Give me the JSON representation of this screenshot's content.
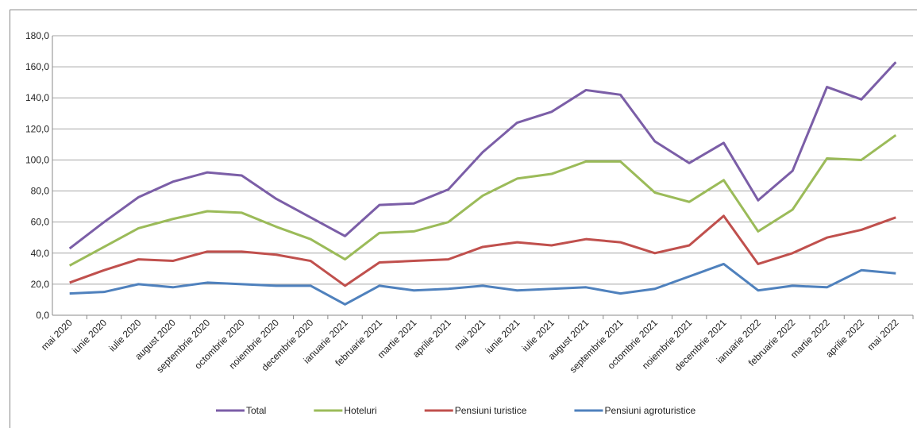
{
  "chart_data": {
    "type": "line",
    "categories": [
      "mai 2020",
      "iunie 2020",
      "iulie 2020",
      "august 2020",
      "septembrie 2020",
      "octombrie 2020",
      "noiembrie 2020",
      "decembrie 2020",
      "ianuarie 2021",
      "februarie 2021",
      "martie 2021",
      "aprilie 2021",
      "mai 2021",
      "iunie 2021",
      "iulie 2021",
      "august 2021",
      "septembrie 2021",
      "octombrie 2021",
      "noiembrie 2021",
      "decembrie 2021",
      "ianuarie 2022",
      "februarie 2022",
      "martie 2022",
      "aprilie 2022",
      "mai 2022"
    ],
    "series": [
      {
        "name": "Total",
        "color": "#7b5ea7",
        "values": [
          43,
          60,
          76,
          86,
          92,
          90,
          75,
          63,
          51,
          71,
          72,
          81,
          105,
          124,
          131,
          145,
          142,
          112,
          98,
          111,
          74,
          93,
          147,
          139,
          163
        ]
      },
      {
        "name": "Hoteluri",
        "color": "#9bbb59",
        "values": [
          32,
          44,
          56,
          62,
          67,
          66,
          57,
          49,
          36,
          53,
          54,
          60,
          77,
          88,
          91,
          99,
          99,
          79,
          73,
          87,
          54,
          68,
          101,
          100,
          116
        ]
      },
      {
        "name": "Pensiuni turistice",
        "color": "#c0504d",
        "values": [
          21,
          29,
          36,
          35,
          41,
          41,
          39,
          35,
          19,
          34,
          35,
          36,
          44,
          47,
          45,
          49,
          47,
          40,
          45,
          64,
          33,
          40,
          50,
          55,
          63
        ]
      },
      {
        "name": "Pensiuni agroturistice",
        "color": "#4f81bd",
        "values": [
          14,
          15,
          20,
          18,
          21,
          20,
          19,
          19,
          7,
          19,
          16,
          17,
          19,
          16,
          17,
          18,
          14,
          17,
          25,
          33,
          16,
          19,
          18,
          29,
          27
        ]
      }
    ],
    "ylim": [
      0,
      180
    ],
    "yticks": [
      {
        "value": 0,
        "label": "0,0"
      },
      {
        "value": 20,
        "label": "20,0"
      },
      {
        "value": 40,
        "label": "40,0"
      },
      {
        "value": 60,
        "label": "60,0"
      },
      {
        "value": 80,
        "label": "80,0"
      },
      {
        "value": 100,
        "label": "100,0"
      },
      {
        "value": 120,
        "label": "120,0"
      },
      {
        "value": 140,
        "label": "140,0"
      },
      {
        "value": 160,
        "label": "160,0"
      },
      {
        "value": 180,
        "label": "180,0"
      }
    ],
    "grid": true
  }
}
